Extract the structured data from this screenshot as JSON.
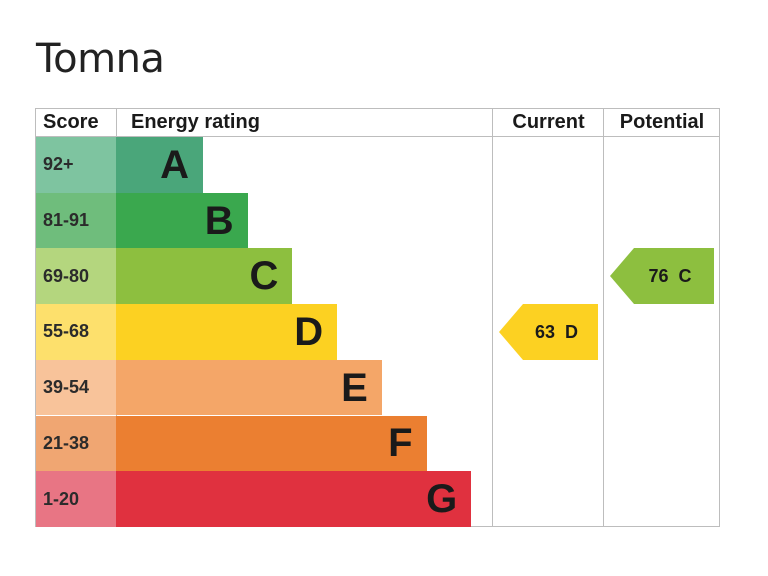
{
  "title": "Tomna",
  "headers": {
    "score": "Score",
    "energy_rating": "Energy rating",
    "current": "Current",
    "potential": "Potential"
  },
  "chart_data": {
    "type": "bar",
    "bands": [
      {
        "letter": "A",
        "range": "92+",
        "min": 92,
        "max": 100,
        "bar_color": "#4aa67a",
        "score_bg": "#7ec4a0"
      },
      {
        "letter": "B",
        "range": "81-91",
        "min": 81,
        "max": 91,
        "bar_color": "#3aa84e",
        "score_bg": "#6fbd7c"
      },
      {
        "letter": "C",
        "range": "69-80",
        "min": 69,
        "max": 80,
        "bar_color": "#8dbf3f",
        "score_bg": "#b4d67e"
      },
      {
        "letter": "D",
        "range": "55-68",
        "min": 55,
        "max": 68,
        "bar_color": "#fcd122",
        "score_bg": "#fde06c"
      },
      {
        "letter": "E",
        "range": "39-54",
        "min": 39,
        "max": 54,
        "bar_color": "#f4a668",
        "score_bg": "#f8c39a"
      },
      {
        "letter": "F",
        "range": "21-38",
        "min": 21,
        "max": 38,
        "bar_color": "#eb7f31",
        "score_bg": "#f0a672"
      },
      {
        "letter": "G",
        "range": "1-20",
        "min": 1,
        "max": 20,
        "bar_color": "#e0313f",
        "score_bg": "#e87584"
      }
    ],
    "current": {
      "value": 63,
      "letter": "D",
      "color": "#fcd122"
    },
    "potential": {
      "value": 76,
      "letter": "C",
      "color": "#8dbf3f"
    }
  }
}
